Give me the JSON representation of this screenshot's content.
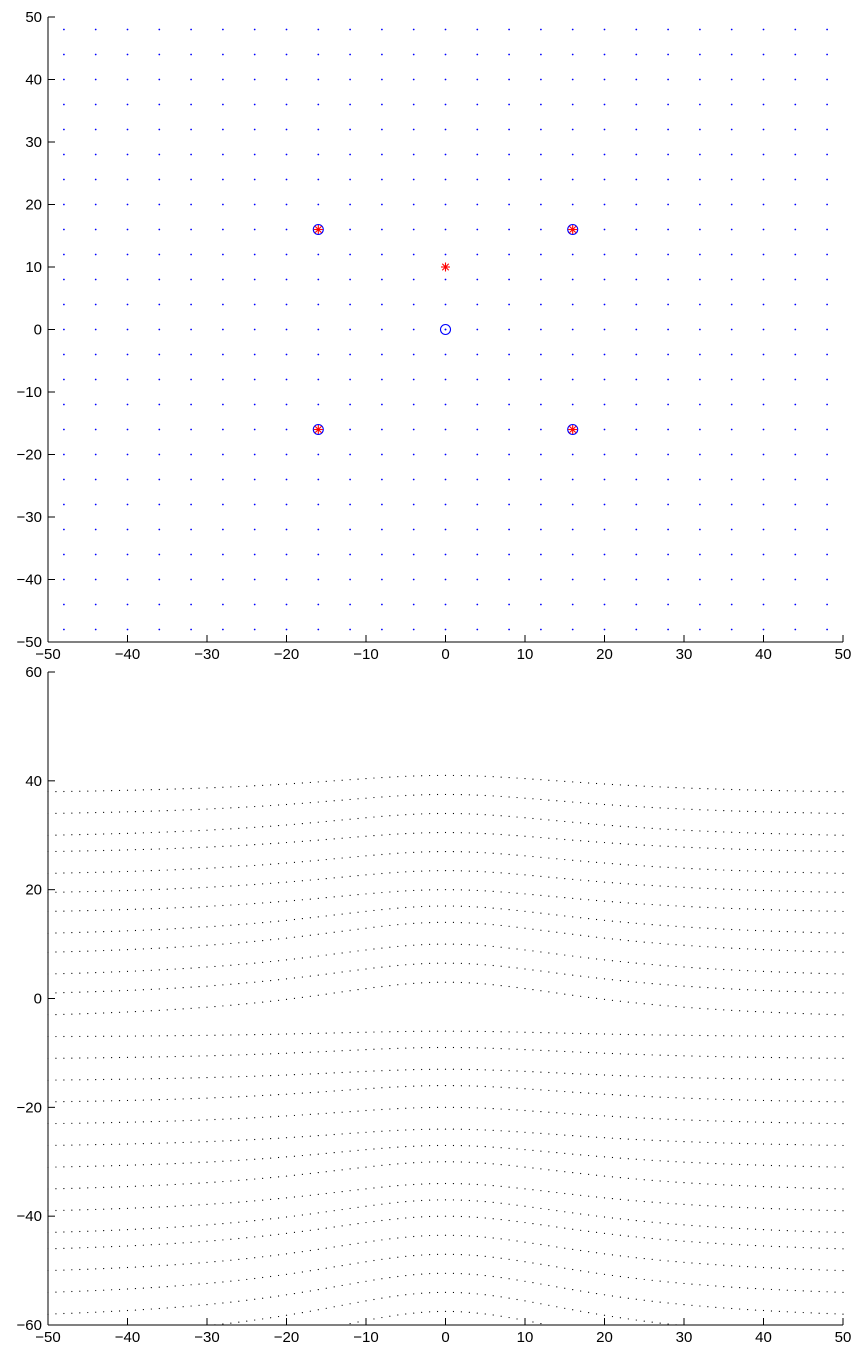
{
  "chart_data": [
    {
      "type": "scatter",
      "xlim": [
        -50,
        50
      ],
      "ylim": [
        -50,
        50
      ],
      "x_ticks": [
        -50,
        -40,
        -30,
        -20,
        -10,
        0,
        10,
        20,
        30,
        40,
        50
      ],
      "y_ticks": [
        -50,
        -40,
        -30,
        -20,
        -10,
        0,
        10,
        20,
        30,
        40,
        50
      ],
      "grid": false,
      "series": [
        {
          "marker": "dot",
          "color": "#0000ff",
          "grid_points": {
            "x_from": -48,
            "x_to": 48,
            "y_from": -48,
            "y_to": 48,
            "step": 4
          }
        },
        {
          "marker": "circle",
          "color": "#0000ff",
          "points": [
            [
              0,
              0
            ],
            [
              -16,
              16
            ],
            [
              16,
              16
            ],
            [
              -16,
              -16
            ],
            [
              16,
              -16
            ]
          ]
        },
        {
          "marker": "asterisk",
          "color": "#ff0000",
          "points": [
            [
              0,
              10
            ],
            [
              -16,
              16
            ],
            [
              16,
              16
            ],
            [
              -16,
              -16
            ],
            [
              16,
              -16
            ]
          ]
        }
      ]
    },
    {
      "type": "scatter",
      "xlim": [
        -50,
        50
      ],
      "ylim": [
        -60,
        60
      ],
      "x_ticks": [
        -50,
        -40,
        -30,
        -20,
        -10,
        0,
        10,
        20,
        30,
        40,
        50
      ],
      "y_ticks": [
        -60,
        -40,
        -20,
        0,
        20,
        40,
        60
      ],
      "grid": false,
      "series": [
        {
          "marker": "dot",
          "color": "#000000",
          "warped_grid": {
            "x_from": -50,
            "x_to": 50,
            "x_step": 1,
            "row_center_values": [
              41,
              37.5,
              34,
              30.5,
              27,
              23.5,
              20,
              17,
              14,
              10,
              6.5,
              3,
              -6,
              -9,
              -13,
              -16,
              -20,
              -24,
              -27,
              -30,
              -34,
              -37,
              -40,
              -43.5,
              -47,
              -50.5,
              -54,
              -57.5
            ],
            "row_edge_values": [
              38,
              34,
              30,
              27,
              23,
              19.5,
              16,
              12,
              8.5,
              4.5,
              1,
              -3,
              -7,
              -11,
              -15,
              -19,
              -23,
              -27,
              -31,
              -35,
              -39,
              -43,
              -46,
              -50,
              -54,
              -58,
              -62,
              -66
            ]
          }
        }
      ]
    }
  ]
}
